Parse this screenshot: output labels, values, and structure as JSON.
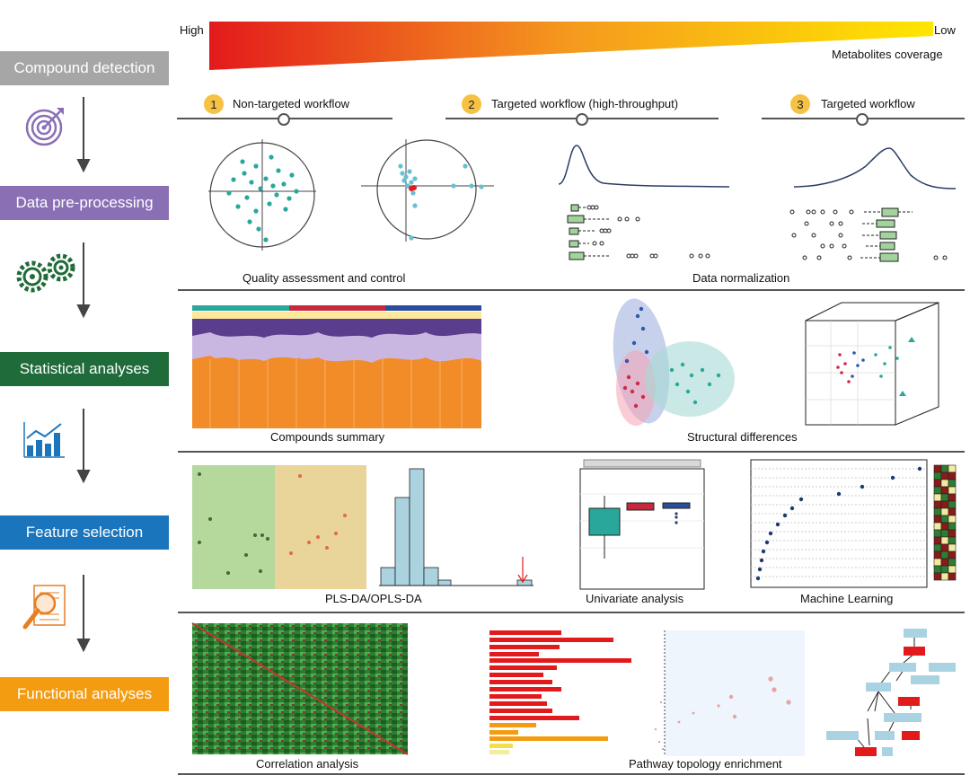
{
  "coverage": {
    "high": "High",
    "low": "Low",
    "caption": "Metabolites coverage",
    "color_high": "#e31a1c",
    "color_low": "#ffe600"
  },
  "steps": [
    {
      "label": "Compound detection",
      "color": "#a6a6a6"
    },
    {
      "label": "Data pre-processing",
      "color": "#8a6fb5"
    },
    {
      "label": "Statistical analyses",
      "color": "#1f6b3a"
    },
    {
      "label": "Feature selection",
      "color": "#1b75bc"
    },
    {
      "label": "Functional analyses",
      "color": "#f39c12"
    }
  ],
  "workflows": [
    {
      "num": "1",
      "label": "Non-targeted workflow"
    },
    {
      "num": "2",
      "label": "Targeted workflow (high-throughput)"
    },
    {
      "num": "3",
      "label": "Targeted workflow"
    }
  ],
  "captions": {
    "qa": "Quality assessment and control",
    "norm": "Data normalization",
    "compounds": "Compounds summary",
    "structural": "Structural differences",
    "plsda": "PLS-DA/OPLS-DA",
    "univariate": "Univariate analysis",
    "ml": "Machine Learning",
    "correlation": "Correlation analysis",
    "pathway": "Pathway topology enrichment"
  },
  "icons": [
    "target-icon",
    "gears-icon",
    "bar-chart-icon",
    "magnifier-icon"
  ]
}
